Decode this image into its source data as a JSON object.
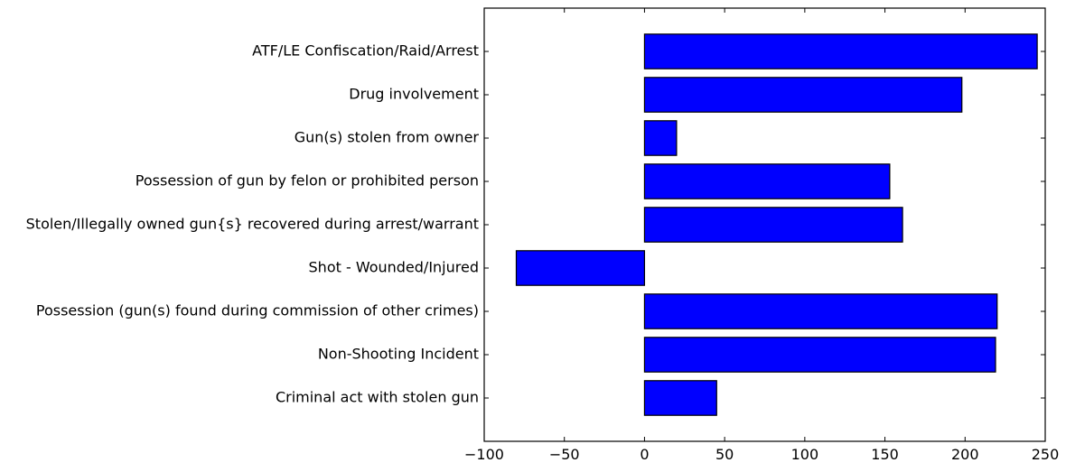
{
  "chart_data": {
    "type": "bar",
    "orientation": "horizontal",
    "title": "",
    "xlabel": "",
    "ylabel": "",
    "xlim": [
      -100,
      250
    ],
    "x_ticks": [
      -100,
      -50,
      0,
      50,
      100,
      150,
      200,
      250
    ],
    "x_tick_labels": [
      "−100",
      "−50",
      "0",
      "50",
      "100",
      "150",
      "200",
      "250"
    ],
    "categories": [
      "ATF/LE Confiscation/Raid/Arrest",
      "Drug involvement",
      "Gun(s) stolen from owner",
      "Possession of gun by felon or prohibited person",
      "Stolen/Illegally owned gun{s} recovered during arrest/warrant",
      "Shot - Wounded/Injured",
      "Possession (gun(s) found during commission of other crimes)",
      "Non-Shooting Incident",
      "Criminal act with stolen gun"
    ],
    "values": [
      245,
      198,
      20,
      153,
      161,
      -80,
      220,
      219,
      45
    ],
    "bar_color": "#0000ff",
    "grid": false,
    "legend": "none"
  }
}
